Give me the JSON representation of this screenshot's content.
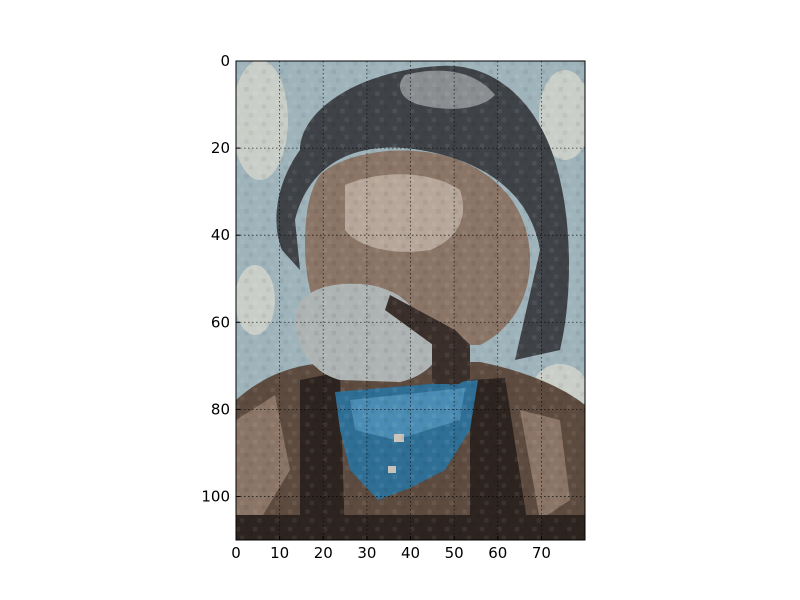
{
  "chart_data": {
    "type": "heatmap",
    "title": "",
    "xlabel": "",
    "ylabel": "",
    "image_grid": {
      "columns": 80,
      "rows": 110
    },
    "xlim": [
      0,
      80
    ],
    "ylim": [
      110,
      0
    ],
    "y_axis_inverted": true,
    "grid": "dotted",
    "x_ticks": [
      {
        "value": 0,
        "label": "0"
      },
      {
        "value": 10,
        "label": "10"
      },
      {
        "value": 20,
        "label": "20"
      },
      {
        "value": 30,
        "label": "30"
      },
      {
        "value": 40,
        "label": "40"
      },
      {
        "value": 50,
        "label": "50"
      },
      {
        "value": 60,
        "label": "60"
      },
      {
        "value": 70,
        "label": "70"
      }
    ],
    "y_ticks": [
      {
        "value": 0,
        "label": "0"
      },
      {
        "value": 20,
        "label": "20"
      },
      {
        "value": 40,
        "label": "40"
      },
      {
        "value": 60,
        "label": "60"
      },
      {
        "value": 80,
        "label": "80"
      },
      {
        "value": 100,
        "label": "100"
      }
    ],
    "image_regions": [
      {
        "name": "sky-background",
        "color": "#9fb3bb"
      },
      {
        "name": "sky-highlight",
        "color": "#c9cfc8"
      },
      {
        "name": "hat",
        "color": "#3f4347"
      },
      {
        "name": "hat-highlight",
        "color": "#8a8e90"
      },
      {
        "name": "face",
        "color": "#8a7566"
      },
      {
        "name": "face-highlight",
        "color": "#b7a79a"
      },
      {
        "name": "beard",
        "color": "#aeb3b4"
      },
      {
        "name": "pipe",
        "color": "#3a2f2a"
      },
      {
        "name": "scarf",
        "color": "#2f6f96"
      },
      {
        "name": "scarf-highlight",
        "color": "#4a8cb3"
      },
      {
        "name": "coat",
        "color": "#5d4b3f"
      },
      {
        "name": "coat-shadow",
        "color": "#2d2420"
      },
      {
        "name": "coat-highlight",
        "color": "#8a7566"
      }
    ]
  }
}
